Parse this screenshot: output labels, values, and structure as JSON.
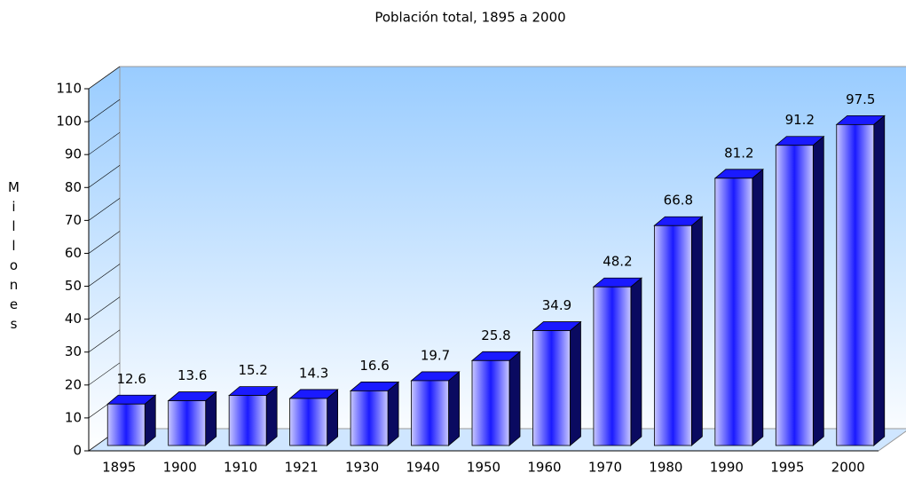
{
  "chart_data": {
    "type": "bar3d",
    "title": "Población total, 1895 a 2000",
    "y_label": "Millones",
    "categories": [
      "1895",
      "1900",
      "1910",
      "1921",
      "1930",
      "1940",
      "1950",
      "1960",
      "1970",
      "1980",
      "1990",
      "1995",
      "2000"
    ],
    "values": [
      12.6,
      13.6,
      15.2,
      14.3,
      16.6,
      19.7,
      25.8,
      34.9,
      48.2,
      66.8,
      81.2,
      91.2,
      97.5
    ],
    "color": "#1a1aff",
    "ylim": [
      0,
      110
    ],
    "yticks": [
      0,
      10,
      20,
      30,
      40,
      50,
      60,
      70,
      80,
      90,
      100,
      110
    ]
  }
}
